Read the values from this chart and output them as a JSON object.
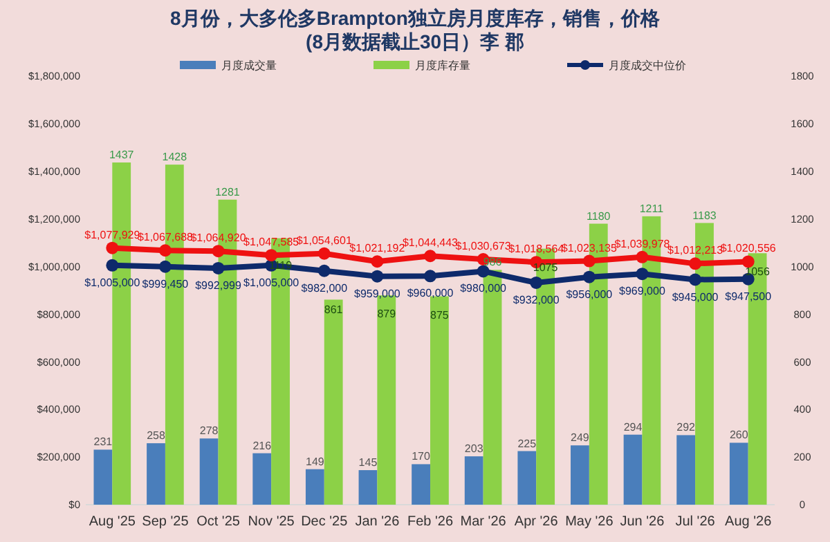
{
  "chart_data": {
    "type": "bar",
    "title": "8月份，大多伦多Brampton独立房月度库存，销售，价格\n(8月数据截止30日）李 郡",
    "categories": [
      "Aug '25",
      "Sep '25",
      "Oct '25",
      "Nov '25",
      "Dec '25",
      "Jan '26",
      "Feb '26",
      "Mar '26",
      "Apr '26",
      "May '26",
      "Jun '26",
      "Jul '26",
      "Aug '26"
    ],
    "series": [
      {
        "name": "月度成交量",
        "axis": "y2",
        "color": "#4a7ebb",
        "values": [
          231,
          258,
          278,
          216,
          149,
          145,
          170,
          203,
          225,
          249,
          294,
          292,
          260
        ]
      },
      {
        "name": "月度库存量",
        "axis": "y2",
        "color": "#8cd147",
        "values": [
          1437,
          1428,
          1281,
          1119,
          861,
          879,
          875,
          986,
          1075,
          1180,
          1211,
          1183,
          1056
        ]
      },
      {
        "name": "月度成交中位价",
        "type": "line",
        "color": "#0e2a6b",
        "marker": "circle",
        "values": [
          1005000,
          999450,
          992999,
          1005000,
          982000,
          959000,
          960000,
          980000,
          932000,
          956000,
          969000,
          945000,
          947500
        ],
        "value_labels": [
          "$1,005,000",
          "$999,450",
          "$992,999",
          "$1,005,000",
          "$982,000",
          "$959,000",
          "$960,000",
          "$980,000",
          "$932,000",
          "$956,000",
          "$969,000",
          "$945,000",
          "$947,500"
        ]
      },
      {
        "type": "line",
        "color": "#ee1111",
        "marker": "circle",
        "values": [
          1077929,
          1067688,
          1064920,
          1047585,
          1054601,
          1021192,
          1044443,
          1030673,
          1018564,
          1023135,
          1039978,
          1012213,
          1020556
        ],
        "value_labels": [
          "$1,077,929",
          "$1,067,688",
          "$1,064,920",
          "$1,047,585",
          "$1,054,601",
          "$1,021,192",
          "$1,044,443",
          "$1,030,673",
          "$1,018,564",
          "$1,023,135",
          "$1,039,978",
          "$1,012,213",
          "$1,020,556"
        ]
      }
    ],
    "ylim": [
      0,
      1800000
    ],
    "yticks": [
      {
        "value": 0,
        "label": "$0"
      },
      {
        "value": 200000,
        "label": "$200,000"
      },
      {
        "value": 400000,
        "label": "$400,000"
      },
      {
        "value": 600000,
        "label": "$600,000"
      },
      {
        "value": 800000,
        "label": "$800,000"
      },
      {
        "value": 1000000,
        "label": "$1,000,000"
      },
      {
        "value": 1200000,
        "label": "$1,200,000"
      },
      {
        "value": 1400000,
        "label": "$1,400,000"
      },
      {
        "value": 1600000,
        "label": "$1,600,000"
      },
      {
        "value": 1800000,
        "label": "$1,800,000"
      }
    ],
    "y2lim": [
      0,
      1800
    ],
    "y2ticks": [
      0,
      200,
      400,
      600,
      800,
      1000,
      1200,
      1400,
      1600,
      1800
    ],
    "data_labels": true,
    "legend": "top",
    "grid": false
  }
}
